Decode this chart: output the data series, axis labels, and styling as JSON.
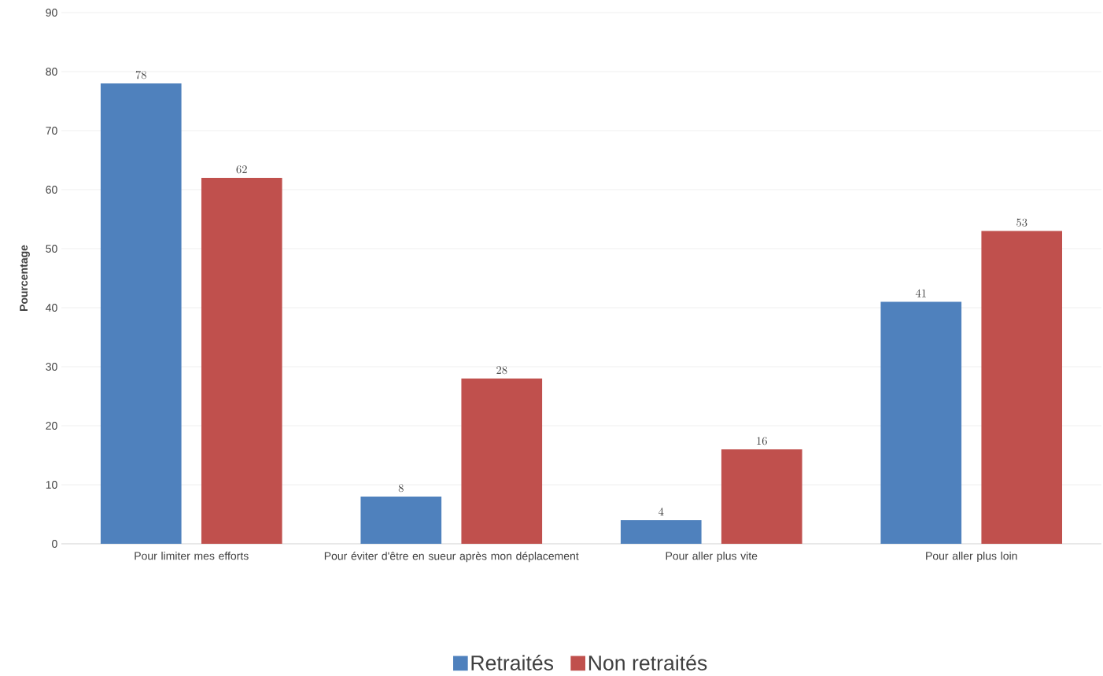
{
  "chart_data": {
    "type": "bar",
    "ylabel": "Pourcentage",
    "categories": [
      "Pour limiter mes efforts",
      "Pour éviter d'être en sueur après mon déplacement",
      "Pour aller plus vite",
      "Pour aller plus loin"
    ],
    "series": [
      {
        "name": "Retraités",
        "color": "#4f81bd",
        "values": [
          78,
          8,
          4,
          41
        ]
      },
      {
        "name": "Non retraités",
        "color": "#c0504d",
        "values": [
          62,
          28,
          16,
          53
        ]
      }
    ],
    "ylim": [
      0,
      90
    ],
    "yticks": [
      0,
      10,
      20,
      30,
      40,
      50,
      60,
      70,
      80,
      90
    ],
    "grid": "y",
    "legend": "bottom",
    "data_labels": true
  }
}
